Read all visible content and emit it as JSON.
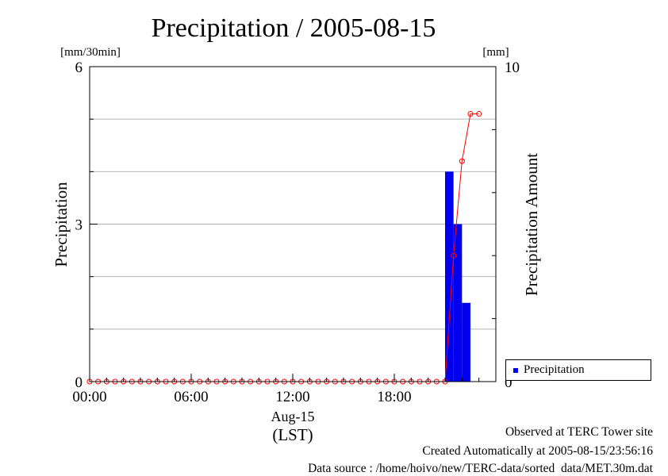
{
  "chart_data": {
    "type": "bar",
    "title": "Precipitation / 2005-08-15",
    "ylabel": "Precipitation",
    "y2label": "Precipitation Amount",
    "yunit": "[mm/30min]",
    "y2unit": "[mm]",
    "ylim": [
      0,
      6
    ],
    "y2lim": [
      0,
      10
    ],
    "yticks": [
      "0",
      "3",
      "6"
    ],
    "y2ticks": [
      "0",
      "10"
    ],
    "xlim": [
      0,
      24
    ],
    "xticks": [
      {
        "t": 0,
        "label": "00:00"
      },
      {
        "t": 6,
        "label": "06:00"
      },
      {
        "t": 12,
        "label": "12:00"
      },
      {
        "t": 18,
        "label": "18:00"
      }
    ],
    "xdate": "Aug-15",
    "xunit": "(LST)",
    "grid": true,
    "legend_position": "bottom-right",
    "legend_label": "Precipitation",
    "colors": {
      "bars": "#0000ee",
      "cumulative": "#ff0000",
      "grid": "#b4b4b4"
    },
    "series": [
      {
        "name": "Precipitation",
        "type": "bar",
        "bars": [
          {
            "t": 21.0,
            "value": 4.0
          },
          {
            "t": 21.5,
            "value": 3.0
          },
          {
            "t": 22.0,
            "value": 1.5
          }
        ]
      },
      {
        "type": "line",
        "x": [
          0,
          0.5,
          1,
          1.5,
          2,
          2.5,
          3,
          3.5,
          4,
          4.5,
          5,
          5.5,
          6,
          6.5,
          7,
          7.5,
          8,
          8.5,
          9,
          9.5,
          10,
          10.5,
          11,
          11.5,
          12,
          12.5,
          13,
          13.5,
          14,
          14.5,
          15,
          15.5,
          16,
          16.5,
          17,
          17.5,
          18,
          18.5,
          19,
          19.5,
          20,
          20.5,
          21,
          21.5,
          22,
          22.5,
          23
        ],
        "values": [
          0,
          0,
          0,
          0,
          0,
          0,
          0,
          0,
          0,
          0,
          0,
          0,
          0,
          0,
          0,
          0,
          0,
          0,
          0,
          0,
          0,
          0,
          0,
          0,
          0,
          0,
          0,
          0,
          0,
          0,
          0,
          0,
          0,
          0,
          0,
          0,
          0,
          0,
          0,
          0,
          0,
          0,
          0,
          4.0,
          7.0,
          8.5,
          8.5
        ]
      }
    ]
  },
  "footer": {
    "line1": "Observed at TERC Tower site",
    "line2": "Created Automatically at 2005-08-15/23:56:16",
    "line3": "Data source : /home/hoivo/new/TERC-data/sorted  data/MET.30m.dat"
  }
}
